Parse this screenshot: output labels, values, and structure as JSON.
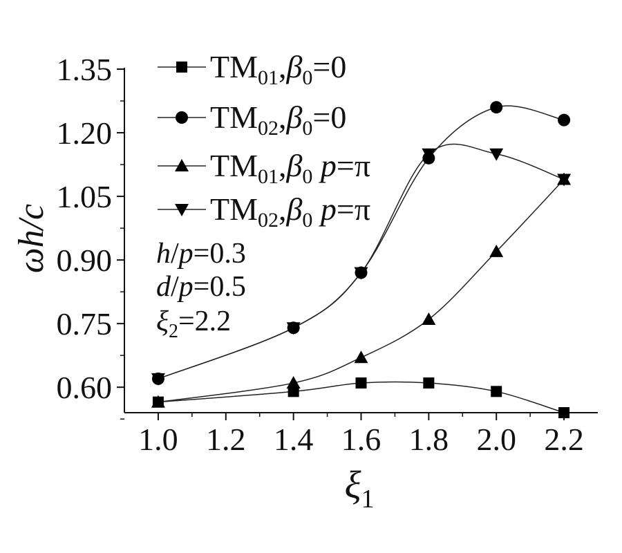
{
  "chart_data": {
    "type": "line",
    "x": [
      1.0,
      1.4,
      1.6,
      1.8,
      2.0,
      2.2
    ],
    "xlim": [
      0.9,
      2.3
    ],
    "ylim": [
      0.54,
      1.35
    ],
    "x_ticks": [
      1.0,
      1.2,
      1.4,
      1.6,
      1.8,
      2.0,
      2.2
    ],
    "y_ticks": [
      0.6,
      0.75,
      0.9,
      1.05,
      1.2,
      1.35
    ],
    "x_tick_labels": [
      "1.0",
      "1.2",
      "1.4",
      "1.6",
      "1.8",
      "2.0",
      "2.2"
    ],
    "y_tick_labels": [
      "0.60",
      "0.75",
      "0.90",
      "1.05",
      "1.20",
      "1.35"
    ],
    "xlabel": "ξ1",
    "ylabel": "ωh/c",
    "grid": false,
    "legend_position": "top-left",
    "series": [
      {
        "name": "TM01,β0=0",
        "marker": "square",
        "values": [
          0.565,
          0.59,
          0.61,
          0.61,
          0.59,
          0.54
        ]
      },
      {
        "name": "TM02,β0=0",
        "marker": "circle",
        "values": [
          0.62,
          0.74,
          0.87,
          1.14,
          1.26,
          1.23
        ]
      },
      {
        "name": "TM01,β0 p=π",
        "marker": "triangle-up",
        "values": [
          0.565,
          0.61,
          0.67,
          0.76,
          0.92,
          1.09
        ]
      },
      {
        "name": "TM02,β0 p=π",
        "marker": "triangle-down",
        "values": [
          0.62,
          0.74,
          0.87,
          1.15,
          1.15,
          1.09
        ]
      }
    ],
    "annotations": [
      "h/p=0.3",
      "d/p=0.5",
      "ξ2=2.2"
    ]
  },
  "colors": {
    "line": "#222222",
    "marker": "#000000",
    "axis": "#111111"
  }
}
